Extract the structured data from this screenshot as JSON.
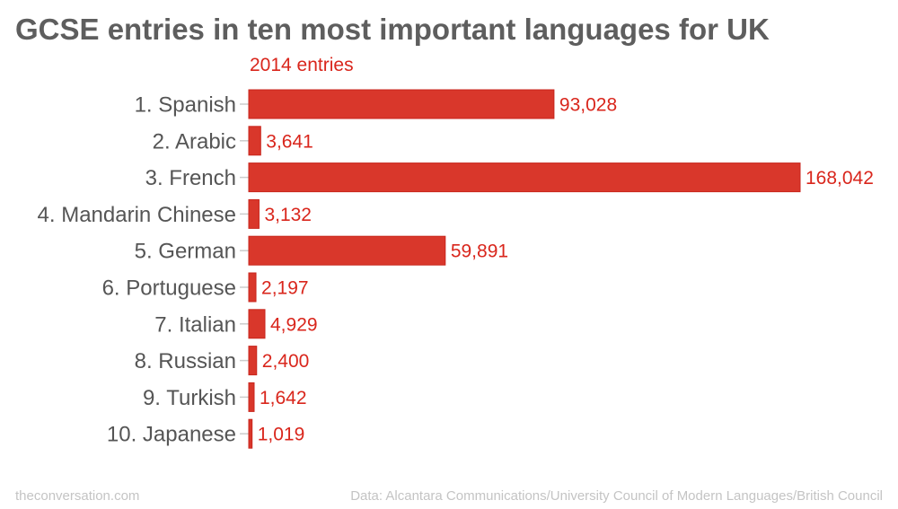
{
  "chart_data": {
    "type": "bar",
    "orientation": "horizontal",
    "title": "GCSE entries in ten most important languages for UK",
    "subtitle": "2014 entries",
    "categories": [
      "1. Spanish",
      "2. Arabic",
      "3. French",
      "4. Mandarin Chinese",
      "5. German",
      "6. Portuguese",
      "7. Italian",
      "8. Russian",
      "9. Turkish",
      "10. Japanese"
    ],
    "values": [
      93028,
      3641,
      168042,
      3132,
      59891,
      2197,
      4929,
      2400,
      1642,
      1019
    ],
    "value_labels": [
      "93,028",
      "3,641",
      "168,042",
      "3,132",
      "59,891",
      "2,197",
      "4,929",
      "2,400",
      "1,642",
      "1,019"
    ],
    "xlim": [
      0,
      168042
    ],
    "grid": false,
    "bar_color": "#d9372b",
    "label_color": "#d9261c"
  },
  "footer": {
    "source_site": "theconversation.com",
    "data_credit": "Data: Alcantara Communications/University Council of Modern Languages/British Council"
  }
}
